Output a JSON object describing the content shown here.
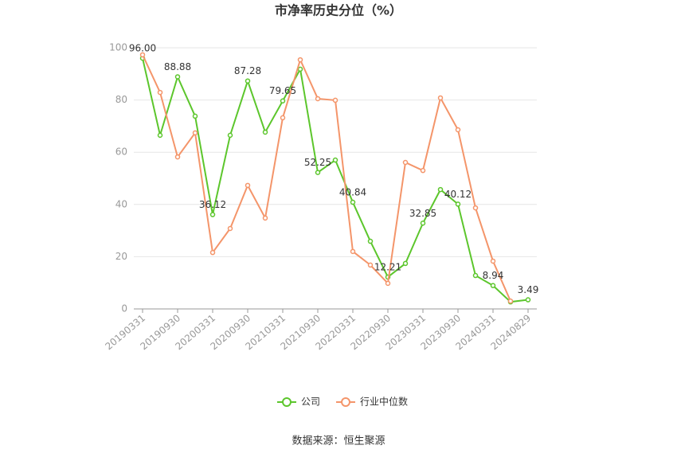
{
  "chart_data": {
    "type": "line",
    "title": "市净率历史分位（%）",
    "categories": [
      "20190331",
      null,
      "20190930",
      null,
      "20200331",
      null,
      "20200930",
      null,
      "20210331",
      null,
      "20210930",
      null,
      "20220331",
      null,
      "20220930",
      null,
      "20230331",
      null,
      "20230930",
      null,
      "20240331",
      null,
      "20240829"
    ],
    "series": [
      {
        "name": "公司",
        "color": "#5cc62c",
        "values": [
          96.0,
          66.5,
          88.88,
          73.8,
          36.12,
          66.5,
          87.28,
          67.7,
          79.65,
          91.8,
          52.25,
          57.0,
          40.84,
          25.9,
          12.21,
          17.4,
          32.85,
          45.7,
          40.12,
          12.8,
          8.94,
          2.7,
          3.49
        ],
        "value_labels": [
          "96.00",
          null,
          "88.88",
          null,
          "36.12",
          null,
          "87.28",
          null,
          "79.65",
          null,
          "52.25",
          null,
          "40.84",
          null,
          "12.21",
          null,
          "32.85",
          null,
          "40.12",
          null,
          "8.94",
          null,
          "3.49"
        ]
      },
      {
        "name": "行业中位数",
        "color": "#f4956a",
        "values": [
          97.3,
          82.9,
          58.2,
          67.4,
          21.6,
          30.8,
          47.3,
          34.8,
          73.2,
          95.4,
          80.5,
          79.9,
          22.0,
          16.8,
          9.8,
          56.1,
          53.0,
          80.8,
          68.6,
          38.7,
          18.3,
          3.0,
          null
        ]
      }
    ],
    "ylim": [
      0,
      100
    ],
    "yticks": [
      0,
      20,
      40,
      60,
      80,
      100
    ],
    "grid": true,
    "legend": "bottom",
    "source": "数据来源：恒生聚源"
  }
}
